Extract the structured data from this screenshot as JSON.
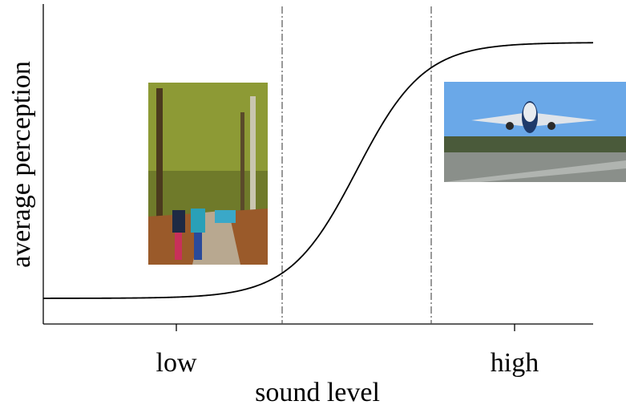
{
  "axes": {
    "x_label": "sound level",
    "y_label": "average perception",
    "x_tick_labels": [
      "low",
      "high"
    ]
  }
}
